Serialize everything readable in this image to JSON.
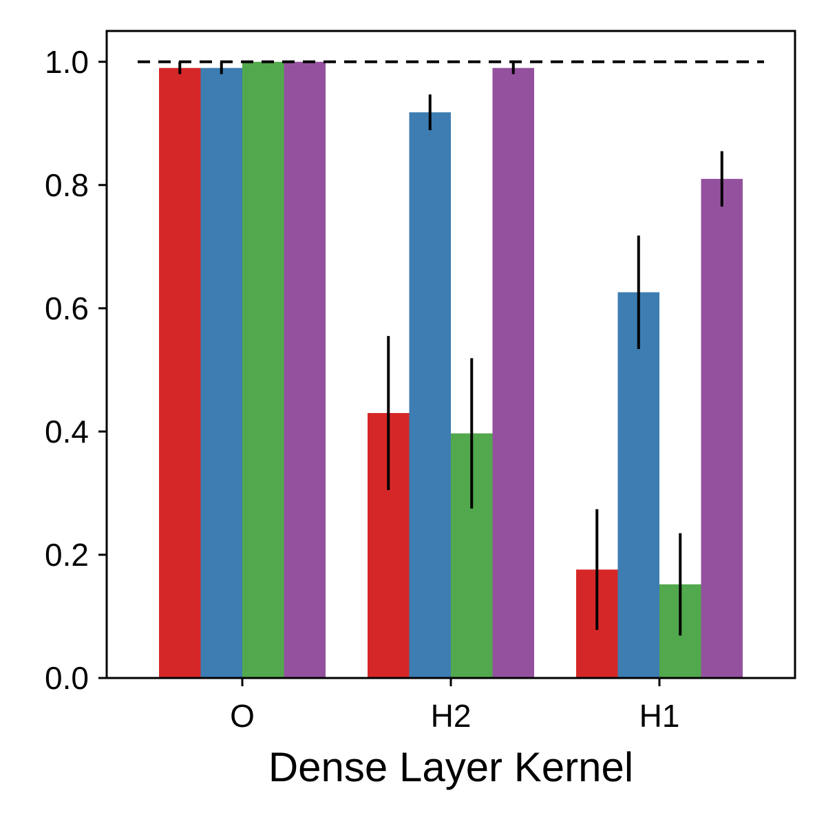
{
  "chart_data": {
    "type": "bar",
    "title": "",
    "xlabel": "Dense Layer Kernel",
    "ylabel": "",
    "categories": [
      "O",
      "H2",
      "H1"
    ],
    "ylim": [
      0,
      1.05
    ],
    "yticks": [
      0.0,
      0.2,
      0.4,
      0.6,
      0.8,
      1.0
    ],
    "ytick_labels": [
      "0.0",
      "0.2",
      "0.4",
      "0.6",
      "0.8",
      "1.0"
    ],
    "grid": false,
    "legend": "none",
    "reference_line": {
      "y": 1.0,
      "style": "dashed",
      "color": "#000000"
    },
    "series": [
      {
        "color": "#d62728",
        "values": [
          0.99,
          0.43,
          0.176
        ],
        "errors": [
          0.01,
          0.125,
          0.098
        ]
      },
      {
        "color": "#3d7db2",
        "values": [
          0.99,
          0.918,
          0.626
        ],
        "errors": [
          0.01,
          0.029,
          0.092
        ]
      },
      {
        "color": "#52a84d",
        "values": [
          1.0,
          0.397,
          0.152
        ],
        "errors": [
          0.0,
          0.122,
          0.083
        ]
      },
      {
        "color": "#94529e",
        "values": [
          1.0,
          0.99,
          0.81
        ],
        "errors": [
          0.0,
          0.01,
          0.045
        ]
      }
    ]
  }
}
